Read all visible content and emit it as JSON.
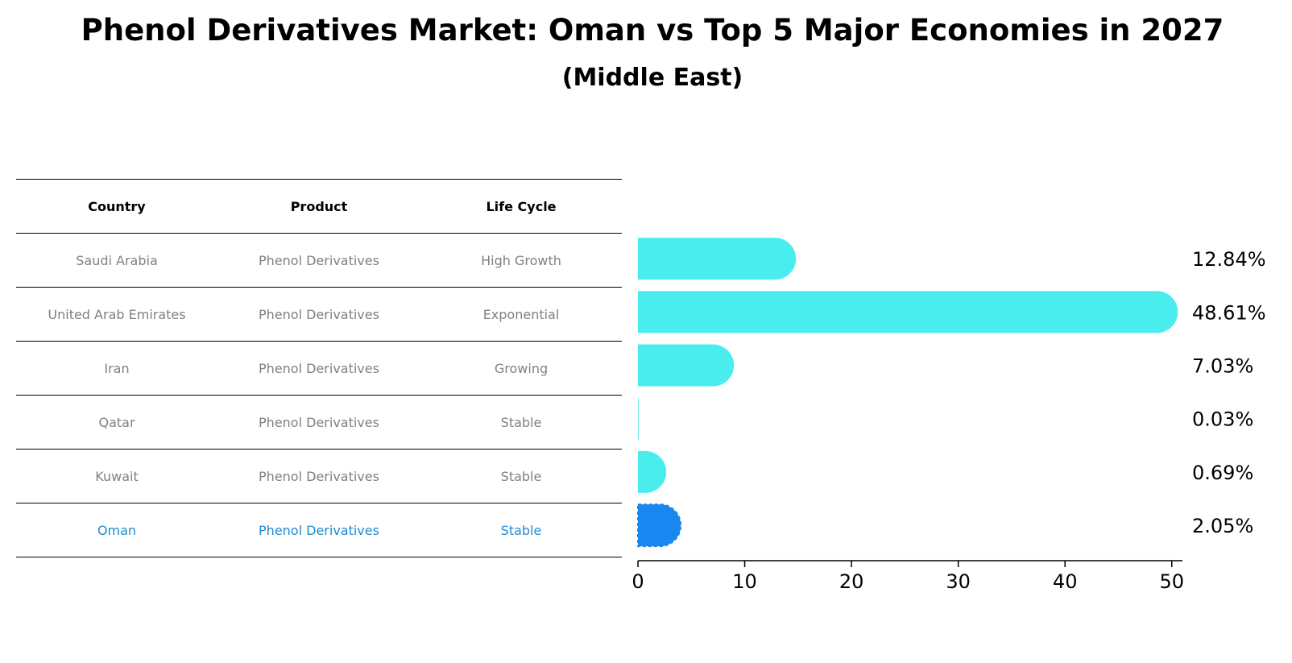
{
  "title": "Phenol Derivatives Market: Oman vs Top 5 Major Economies in 2027",
  "subtitle": "(Middle East)",
  "table": {
    "headers": [
      "Country",
      "Product",
      "Life Cycle"
    ],
    "rows": [
      {
        "country": "Saudi Arabia",
        "product": "Phenol Derivatives",
        "life_cycle": "High Growth"
      },
      {
        "country": "United Arab Emirates",
        "product": "Phenol Derivatives",
        "life_cycle": "Exponential"
      },
      {
        "country": "Iran",
        "product": "Phenol Derivatives",
        "life_cycle": "Growing"
      },
      {
        "country": "Qatar",
        "product": "Phenol Derivatives",
        "life_cycle": "Stable"
      },
      {
        "country": "Kuwait",
        "product": "Phenol Derivatives",
        "life_cycle": "Stable"
      },
      {
        "country": "Oman",
        "product": "Phenol Derivatives",
        "life_cycle": "Stable"
      }
    ]
  },
  "colors": {
    "bar": "#4aeded",
    "highlight": "#1a86f0",
    "highlight_text": "#1f8bd4",
    "muted_text": "#808080"
  },
  "chart_data": {
    "type": "bar",
    "orientation": "horizontal",
    "categories": [
      "Saudi Arabia",
      "United Arab Emirates",
      "Iran",
      "Qatar",
      "Kuwait",
      "Oman"
    ],
    "values": [
      12.84,
      48.61,
      7.03,
      0.03,
      0.69,
      2.05
    ],
    "value_labels": [
      "12.84%",
      "48.61%",
      "7.03%",
      "0.03%",
      "0.69%",
      "2.05%"
    ],
    "highlight": "Oman",
    "xlim": [
      0,
      51
    ],
    "xticks": [
      0,
      10,
      20,
      30,
      40,
      50
    ],
    "xlabel": "",
    "ylabel": "",
    "grid": false
  }
}
